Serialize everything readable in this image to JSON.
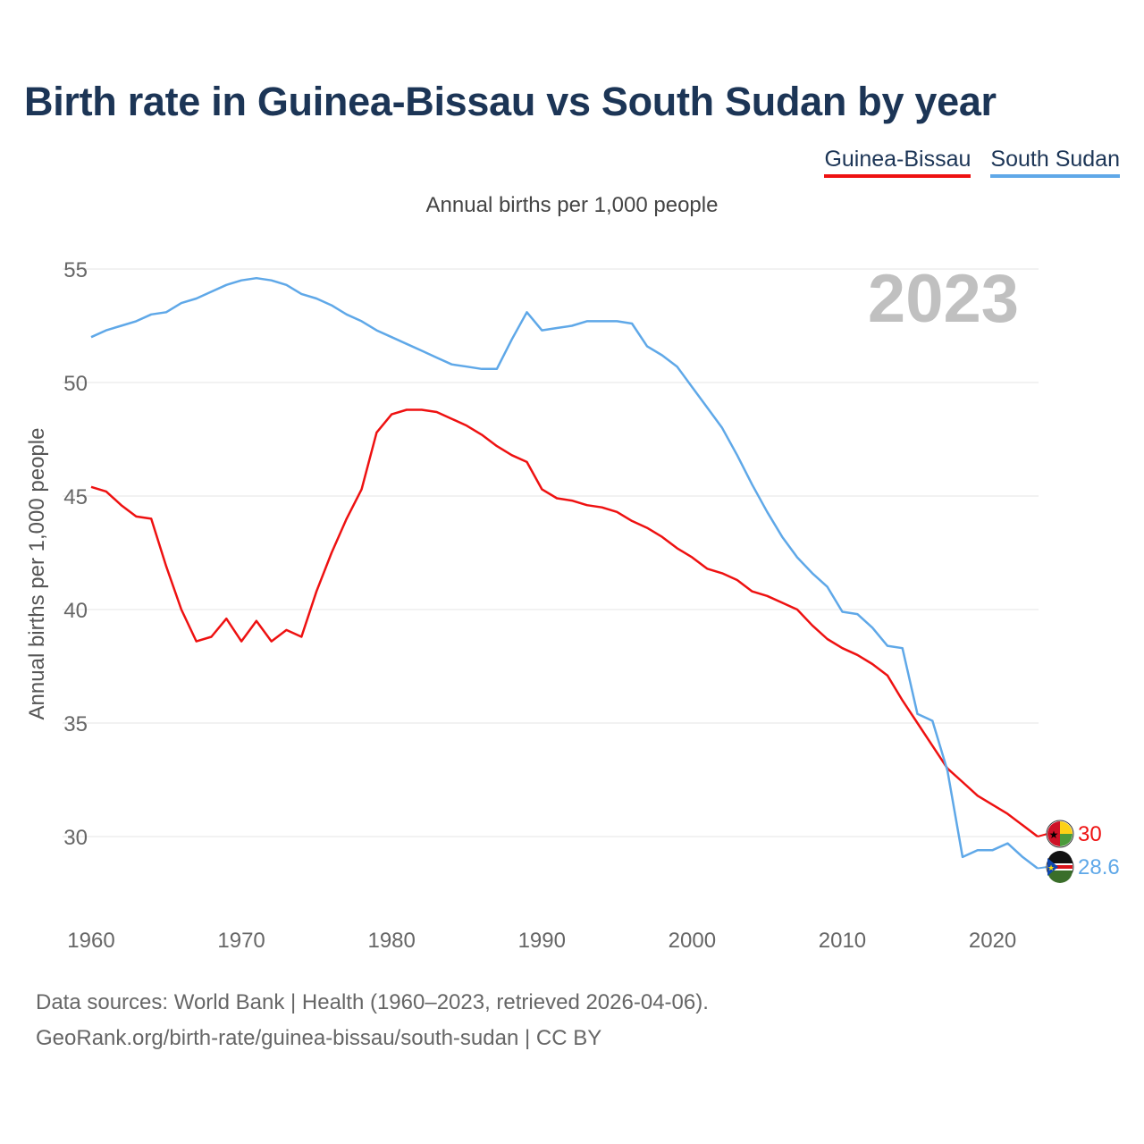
{
  "title": "Birth rate in Guinea-Bissau vs South Sudan by year",
  "subtitle": "Annual births per 1,000 people",
  "footer": {
    "line1": "Data sources: World Bank | Health (1960–2023, retrieved 2026-04-06).",
    "line2": "GeoRank.org/birth-rate/guinea-bissau/south-sudan | CC BY"
  },
  "colors": {
    "guinea_bissau": "#ee1111",
    "south_sudan": "#5fa8e8",
    "title": "#1c3556",
    "year_watermark": "#c0c0c0"
  },
  "chart_data": {
    "type": "line",
    "title": "Birth rate in Guinea-Bissau vs South Sudan by year",
    "subtitle": "Annual births per 1,000 people",
    "xlabel": "",
    "ylabel": "Annual births per 1,000 people",
    "xlim": [
      1960,
      2023
    ],
    "ylim": [
      26.5,
      56
    ],
    "yticks": [
      30,
      35,
      40,
      45,
      50,
      55
    ],
    "xticks": [
      1960,
      1970,
      1980,
      1990,
      2000,
      2010,
      2020
    ],
    "year_label": "2023",
    "legend_position": "top-right",
    "x": [
      1960,
      1961,
      1962,
      1963,
      1964,
      1965,
      1966,
      1967,
      1968,
      1969,
      1970,
      1971,
      1972,
      1973,
      1974,
      1975,
      1976,
      1977,
      1978,
      1979,
      1980,
      1981,
      1982,
      1983,
      1984,
      1985,
      1986,
      1987,
      1988,
      1989,
      1990,
      1991,
      1992,
      1993,
      1994,
      1995,
      1996,
      1997,
      1998,
      1999,
      2000,
      2001,
      2002,
      2003,
      2004,
      2005,
      2006,
      2007,
      2008,
      2009,
      2010,
      2011,
      2012,
      2013,
      2014,
      2015,
      2016,
      2017,
      2018,
      2019,
      2020,
      2021,
      2022,
      2023
    ],
    "series": [
      {
        "name": "Guinea-Bissau",
        "color": "#ee1111",
        "end_label": "30",
        "values": [
          45.4,
          45.2,
          44.6,
          44.1,
          44.0,
          41.9,
          40.0,
          38.6,
          38.8,
          39.6,
          38.6,
          39.5,
          38.6,
          39.1,
          38.8,
          40.8,
          42.5,
          44.0,
          45.3,
          47.8,
          48.6,
          48.8,
          48.8,
          48.7,
          48.4,
          48.1,
          47.7,
          47.2,
          46.8,
          46.5,
          45.3,
          44.9,
          44.8,
          44.6,
          44.5,
          44.3,
          43.9,
          43.6,
          43.2,
          42.7,
          42.3,
          41.8,
          41.6,
          41.3,
          40.8,
          40.6,
          40.3,
          40.0,
          39.3,
          38.7,
          38.3,
          38.0,
          37.6,
          37.1,
          36.0,
          35.0,
          34.0,
          33.0,
          32.4,
          31.8,
          31.4,
          31.0,
          30.5,
          30.0
        ]
      },
      {
        "name": "South Sudan",
        "color": "#5fa8e8",
        "end_label": "28.6",
        "values": [
          52.0,
          52.3,
          52.5,
          52.7,
          53.0,
          53.1,
          53.5,
          53.7,
          54.0,
          54.3,
          54.5,
          54.6,
          54.5,
          54.3,
          53.9,
          53.7,
          53.4,
          53.0,
          52.7,
          52.3,
          52.0,
          51.7,
          51.4,
          51.1,
          50.8,
          50.7,
          50.6,
          50.6,
          51.9,
          53.1,
          52.3,
          52.4,
          52.5,
          52.7,
          52.7,
          52.7,
          52.6,
          51.6,
          51.2,
          50.7,
          49.8,
          48.9,
          48.0,
          46.8,
          45.5,
          44.3,
          43.2,
          42.3,
          41.6,
          41.0,
          39.9,
          39.8,
          39.2,
          38.4,
          38.3,
          35.4,
          35.1,
          32.9,
          29.1,
          29.4,
          29.4,
          29.7,
          29.1,
          28.6
        ]
      }
    ]
  }
}
